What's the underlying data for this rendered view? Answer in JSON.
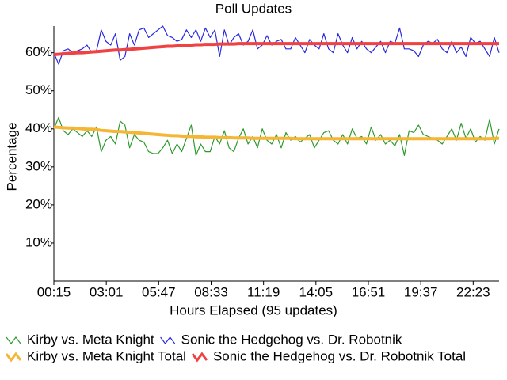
{
  "chart_data": {
    "type": "line",
    "title": "Poll Updates",
    "x_label": "Hours Elapsed (95 updates)",
    "y_label": "Percentage",
    "x": [
      15,
      30,
      45,
      60,
      75,
      90,
      105,
      120,
      135,
      150,
      165,
      180,
      195,
      210,
      225,
      240,
      255,
      270,
      285,
      300,
      315,
      330,
      345,
      360,
      375,
      390,
      405,
      420,
      435,
      450,
      465,
      480,
      495,
      510,
      525,
      540,
      555,
      570,
      585,
      600,
      615,
      630,
      645,
      660,
      675,
      690,
      705,
      720,
      735,
      750,
      765,
      780,
      795,
      810,
      825,
      840,
      855,
      870,
      885,
      900,
      915,
      930,
      945,
      960,
      975,
      990,
      1005,
      1020,
      1035,
      1050,
      1065,
      1080,
      1095,
      1110,
      1125,
      1140,
      1155,
      1170,
      1185,
      1200,
      1215,
      1230,
      1245,
      1260,
      1275,
      1290,
      1305,
      1320,
      1335,
      1350,
      1365,
      1380,
      1395,
      1410,
      1425
    ],
    "xlim": [
      15,
      1425
    ],
    "xticks": [
      {
        "value": 15,
        "label": "00:15"
      },
      {
        "value": 181,
        "label": "03:01"
      },
      {
        "value": 347,
        "label": "05:47"
      },
      {
        "value": 513,
        "label": "08:33"
      },
      {
        "value": 679,
        "label": "11:19"
      },
      {
        "value": 845,
        "label": "14:05"
      },
      {
        "value": 1011,
        "label": "16:51"
      },
      {
        "value": 1177,
        "label": "19:37"
      },
      {
        "value": 1343,
        "label": "22:23"
      }
    ],
    "ylim": [
      0,
      67
    ],
    "yticks": [
      {
        "value": 10,
        "label": "10%"
      },
      {
        "value": 20,
        "label": "20%"
      },
      {
        "value": 30,
        "label": "30%"
      },
      {
        "value": 40,
        "label": "40%"
      },
      {
        "value": 50,
        "label": "50%"
      },
      {
        "value": 60,
        "label": "60%"
      }
    ],
    "grid": false,
    "series": [
      {
        "name": "Kirby vs. Meta Knight",
        "color": "#2e9a2e",
        "line_width": 1.2,
        "values": [
          40,
          43,
          39.5,
          38.5,
          40,
          39,
          38,
          39.5,
          38,
          40.5,
          34,
          37,
          38,
          36,
          42,
          41,
          35,
          38.5,
          37,
          36.5,
          34,
          33.5,
          33.5,
          35,
          37,
          33.5,
          36,
          34,
          37.5,
          41,
          33,
          36,
          34,
          34,
          38,
          36,
          39.5,
          35,
          34,
          37.5,
          40,
          36,
          38,
          35,
          40,
          37,
          36,
          38.5,
          35,
          39,
          37,
          38,
          36.5,
          37.5,
          38.5,
          35,
          37,
          39,
          39.5,
          37,
          36,
          38.5,
          36,
          40,
          37.5,
          38,
          36,
          40.5,
          37,
          38.5,
          36,
          37,
          35.5,
          38.5,
          33,
          39.5,
          39,
          41,
          38.5,
          38,
          37.5,
          37,
          36,
          38,
          40,
          37,
          41.5,
          37.5,
          40,
          36.5,
          38,
          37,
          42.5,
          36,
          40
        ]
      },
      {
        "name": "Sonic the Hedgehog vs. Dr. Robotnik",
        "color": "#2828e0",
        "line_width": 1.2,
        "values": [
          60,
          57,
          60.5,
          61,
          60,
          60.5,
          61,
          62,
          60,
          60.5,
          66,
          63,
          62,
          65,
          58,
          59,
          65,
          62,
          66,
          66.5,
          64,
          65,
          66,
          67,
          64.5,
          64,
          63,
          63.5,
          66,
          64,
          66,
          63,
          66.5,
          64,
          66,
          59,
          66,
          62,
          64,
          65,
          62,
          63,
          66,
          61,
          62,
          64.5,
          62,
          63,
          63.5,
          61,
          61,
          64,
          62,
          60,
          63.5,
          62,
          61,
          65,
          61,
          60,
          65,
          62,
          60,
          64,
          61,
          63,
          61,
          60,
          61.5,
          63,
          60,
          63,
          62.5,
          66.5,
          61,
          61,
          60.5,
          59,
          62,
          63,
          62.5,
          63.5,
          61,
          60,
          63,
          60,
          61.5,
          59,
          64,
          62.5,
          63,
          61,
          59,
          64,
          60
        ]
      },
      {
        "name": "Kirby vs. Meta Knight Total",
        "color": "#f5b635",
        "line_width": 4,
        "values": [
          40.5,
          40.4,
          40.3,
          40.2,
          40.2,
          40.1,
          40.0,
          39.9,
          39.9,
          39.8,
          39.6,
          39.5,
          39.4,
          39.3,
          39.3,
          39.2,
          39.1,
          39.0,
          38.9,
          38.8,
          38.7,
          38.6,
          38.5,
          38.4,
          38.3,
          38.2,
          38.2,
          38.1,
          38.0,
          38.0,
          37.9,
          37.9,
          37.8,
          37.8,
          37.8,
          37.7,
          37.7,
          37.7,
          37.6,
          37.6,
          37.6,
          37.6,
          37.5,
          37.5,
          37.5,
          37.5,
          37.5,
          37.5,
          37.5,
          37.5,
          37.5,
          37.4,
          37.4,
          37.4,
          37.4,
          37.4,
          37.4,
          37.4,
          37.4,
          37.4,
          37.4,
          37.4,
          37.4,
          37.4,
          37.4,
          37.4,
          37.4,
          37.4,
          37.4,
          37.4,
          37.4,
          37.4,
          37.4,
          37.4,
          37.4,
          37.4,
          37.4,
          37.4,
          37.4,
          37.4,
          37.4,
          37.4,
          37.4,
          37.4,
          37.4,
          37.4,
          37.4,
          37.4,
          37.4,
          37.4,
          37.4,
          37.4,
          37.4,
          37.5,
          37.5
        ]
      },
      {
        "name": "Sonic the Hedgehog vs. Dr. Robotnik Total",
        "color": "#f04242",
        "line_width": 4,
        "values": [
          59.5,
          59.6,
          59.7,
          59.8,
          59.9,
          60.0,
          60.0,
          60.1,
          60.2,
          60.3,
          60.4,
          60.5,
          60.6,
          60.7,
          60.7,
          60.8,
          60.9,
          61.0,
          61.1,
          61.2,
          61.3,
          61.4,
          61.5,
          61.6,
          61.7,
          61.7,
          61.8,
          61.9,
          62.0,
          62.0,
          62.1,
          62.1,
          62.2,
          62.2,
          62.2,
          62.3,
          62.3,
          62.3,
          62.3,
          62.4,
          62.4,
          62.4,
          62.4,
          62.4,
          62.4,
          62.4,
          62.4,
          62.4,
          62.4,
          62.4,
          62.4,
          62.4,
          62.4,
          62.4,
          62.4,
          62.4,
          62.4,
          62.4,
          62.4,
          62.4,
          62.4,
          62.4,
          62.4,
          62.4,
          62.4,
          62.4,
          62.4,
          62.4,
          62.4,
          62.4,
          62.4,
          62.4,
          62.4,
          62.4,
          62.4,
          62.4,
          62.4,
          62.4,
          62.4,
          62.4,
          62.4,
          62.4,
          62.4,
          62.4,
          62.4,
          62.4,
          62.4,
          62.4,
          62.4,
          62.4,
          62.4,
          62.4,
          62.4,
          62.4,
          62.4
        ]
      }
    ]
  }
}
